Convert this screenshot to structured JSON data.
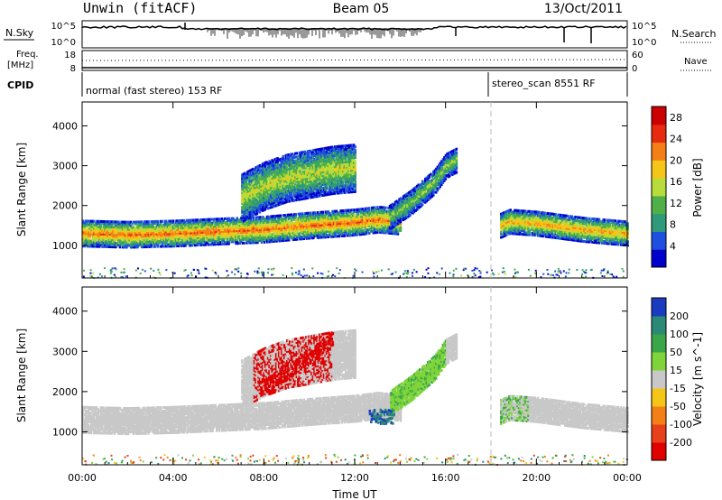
{
  "header": {
    "station": "Unwin (fitACF)",
    "beam": "Beam 05",
    "date": "13/Oct/2011"
  },
  "panels": {
    "nsky": {
      "left_label": "N.Sky",
      "left_ticks": [
        "10^5",
        "10^0"
      ],
      "right_ticks": [
        "10^5",
        "10^0"
      ],
      "right_label": "N.Search"
    },
    "freq": {
      "left_label_1": "Freq.",
      "left_label_2": "[MHz]",
      "left_ticks": [
        "18",
        "8"
      ],
      "right_ticks": [
        "60",
        "0"
      ],
      "right_label": "Nave"
    },
    "cpid": {
      "label": "CPID",
      "segments": [
        "normal (fast stereo) 153 RF",
        "stereo_scan 8551 RF"
      ]
    }
  },
  "chart_data": [
    {
      "type": "heatmap",
      "title": "",
      "ylabel": "Slant Range [km]",
      "xlabel": "",
      "xlim": [
        0,
        24
      ],
      "ylim": [
        180,
        4600
      ],
      "y_ticks": [
        1000,
        2000,
        3000,
        4000
      ],
      "colorbar": {
        "label": "Power [dB]",
        "range": [
          0,
          30
        ],
        "ticks": [
          4,
          8,
          12,
          16,
          20,
          24,
          28
        ],
        "colors": [
          "#0000cc",
          "#1e4fe0",
          "#2e9a7a",
          "#4fb04a",
          "#b8dc3a",
          "#f5c518",
          "#f57f17",
          "#e82a10",
          "#cc0000"
        ]
      },
      "echo_bands": [
        {
          "x": [
            0,
            2,
            4,
            4.8,
            6,
            8,
            10,
            12,
            13,
            14
          ],
          "y": [
            1300,
            1270,
            1300,
            1320,
            1350,
            1400,
            1500,
            1580,
            1650,
            1600
          ],
          "width": 320,
          "value": 20
        },
        {
          "x": [
            7,
            8,
            9,
            10,
            11,
            12
          ],
          "y": [
            2200,
            2500,
            2700,
            2800,
            2900,
            2950
          ],
          "width": 600,
          "value": 14
        },
        {
          "x": [
            13.5,
            14.5,
            15.5,
            16,
            16.5
          ],
          "y": [
            1700,
            2100,
            2600,
            3000,
            3150
          ],
          "width": 300,
          "value": 12
        },
        {
          "x": [
            18.4,
            18.8,
            20,
            22,
            24
          ],
          "y": [
            1500,
            1600,
            1550,
            1400,
            1300
          ],
          "width": 300,
          "value": 18
        }
      ]
    },
    {
      "type": "heatmap",
      "title": "",
      "ylabel": "Slant Range [km]",
      "xlabel": "Time UT",
      "xlim": [
        0,
        24
      ],
      "ylim": [
        180,
        4600
      ],
      "x_ticks": [
        "00:00",
        "04:00",
        "08:00",
        "12:00",
        "16:00",
        "20:00",
        "00:00"
      ],
      "y_ticks": [
        1000,
        2000,
        3000,
        4000
      ],
      "colorbar": {
        "label": "Velocity [m s^-1]",
        "ticks": [
          200,
          100,
          50,
          15,
          -15,
          -50,
          -100,
          -200
        ],
        "colors": [
          "#1a3bbf",
          "#2b8a76",
          "#3aa64a",
          "#7fd43a",
          "#c8c8c8",
          "#f5c518",
          "#f57f17",
          "#e8401a",
          "#e00000"
        ]
      },
      "features": [
        {
          "name": "ground scatter",
          "value": -5
        },
        {
          "name": "red streak 08:00-11:00",
          "value": -250
        },
        {
          "name": "blue patch 13:00",
          "value": 200
        }
      ]
    }
  ],
  "colors": {
    "background": "#ffffff",
    "axes": "#000000",
    "ground_scatter": "#c8c8c8"
  }
}
